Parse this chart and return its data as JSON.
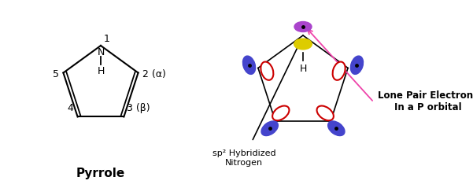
{
  "bg_color": "#ffffff",
  "title_left": "Pyrrole",
  "label_sp2": "sp² Hybridized\nNitrogen",
  "label_lone": "Lone Pair Electrons\nIn a P orbital",
  "ring_color": "#000000",
  "blue_color": "#4444cc",
  "red_color": "#cc0000",
  "purple_color": "#aa44cc",
  "yellow_color": "#ddcc00",
  "pink_color": "#ee44aa",
  "dot_color": "#000000",
  "figw": 6.01,
  "figh": 2.39,
  "dpi": 100
}
